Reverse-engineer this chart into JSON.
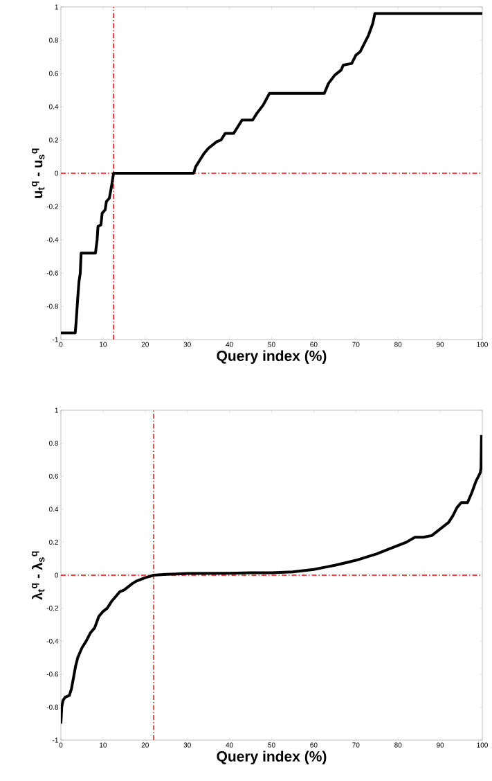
{
  "chart_data": [
    {
      "type": "line",
      "xlabel": "Query index (%)",
      "ylabel": "u$_{t}$$^{q}$ - u$_{s}$$^{q}$",
      "xlim": [
        0,
        100
      ],
      "ylim": [
        -1,
        1
      ],
      "xticks": [
        0,
        10,
        20,
        30,
        40,
        50,
        60,
        70,
        80,
        90,
        100
      ],
      "yticks": [
        -1,
        -0.8,
        -0.6,
        -0.4,
        -0.2,
        0,
        0.2,
        0.4,
        0.6,
        0.8,
        1
      ],
      "marker": "none",
      "series": [
        {
          "color": "#000000",
          "x": [
            0,
            3.4,
            3.6,
            4.0,
            4.3,
            4.6,
            4.8,
            8.2,
            8.6,
            8.8,
            9.5,
            9.8,
            10.5,
            10.8,
            11.5,
            12.0,
            12.5,
            31.5,
            32,
            33,
            34,
            35,
            36,
            37,
            38,
            39,
            41,
            42,
            43,
            45.5,
            46.5,
            48,
            49.5,
            62.5,
            63.5,
            65,
            66.5,
            67,
            69,
            70,
            71,
            72,
            73,
            74,
            74.5,
            100
          ],
          "values": [
            -0.96,
            -0.96,
            -0.9,
            -0.75,
            -0.65,
            -0.6,
            -0.48,
            -0.48,
            -0.4,
            -0.32,
            -0.31,
            -0.24,
            -0.22,
            -0.17,
            -0.15,
            -0.08,
            0,
            0,
            0.04,
            0.08,
            0.12,
            0.15,
            0.17,
            0.19,
            0.2,
            0.24,
            0.24,
            0.28,
            0.32,
            0.32,
            0.36,
            0.41,
            0.48,
            0.48,
            0.54,
            0.59,
            0.62,
            0.65,
            0.66,
            0.71,
            0.73,
            0.78,
            0.83,
            0.9,
            0.96,
            0.96
          ]
        }
      ],
      "ref_lines": [
        {
          "axis": "x",
          "value": 12.5,
          "color": "#ff0000",
          "line_style": "dashdot"
        },
        {
          "axis": "y",
          "value": 0,
          "color": "#ff0000",
          "line_style": "dashdot"
        }
      ]
    },
    {
      "type": "line",
      "xlabel": "Query index (%)",
      "ylabel": "λ$_{t}$$^{q}$ - λ$_{s}$$^{q}$",
      "xlim": [
        0,
        100
      ],
      "ylim": [
        -1,
        1
      ],
      "xticks": [
        0,
        10,
        20,
        30,
        40,
        50,
        60,
        70,
        80,
        90,
        100
      ],
      "yticks": [
        -1,
        -0.8,
        -0.6,
        -0.4,
        -0.2,
        0,
        0.2,
        0.4,
        0.6,
        0.8,
        1
      ],
      "marker": "none",
      "series": [
        {
          "color": "#000000",
          "x": [
            0,
            0.2,
            0.5,
            1,
            2,
            2.5,
            3,
            3.5,
            4,
            5,
            6,
            7,
            8,
            9,
            10,
            11,
            12,
            13,
            14,
            15,
            16,
            17,
            18,
            19,
            20,
            21,
            22,
            25,
            30,
            40,
            45,
            50,
            55,
            60,
            63,
            65,
            70,
            75,
            78,
            80,
            82,
            84,
            86,
            88,
            90,
            92,
            93,
            94,
            95,
            96.5,
            97.5,
            98.5,
            99.5,
            99.7,
            99.8
          ],
          "values": [
            -0.9,
            -0.8,
            -0.76,
            -0.74,
            -0.73,
            -0.69,
            -0.62,
            -0.55,
            -0.5,
            -0.44,
            -0.4,
            -0.35,
            -0.32,
            -0.25,
            -0.22,
            -0.2,
            -0.16,
            -0.13,
            -0.1,
            -0.09,
            -0.07,
            -0.05,
            -0.035,
            -0.025,
            -0.015,
            -0.008,
            0,
            0.005,
            0.01,
            0.012,
            0.015,
            0.015,
            0.02,
            0.035,
            0.05,
            0.06,
            0.09,
            0.13,
            0.16,
            0.18,
            0.2,
            0.23,
            0.23,
            0.24,
            0.28,
            0.32,
            0.36,
            0.41,
            0.44,
            0.44,
            0.5,
            0.57,
            0.62,
            0.65,
            0.85
          ]
        }
      ],
      "ref_lines": [
        {
          "axis": "x",
          "value": 22,
          "color": "#ff0000",
          "line_style": "dashdot"
        },
        {
          "axis": "y",
          "value": 0,
          "color": "#ff0000",
          "line_style": "dashdot"
        }
      ]
    }
  ]
}
